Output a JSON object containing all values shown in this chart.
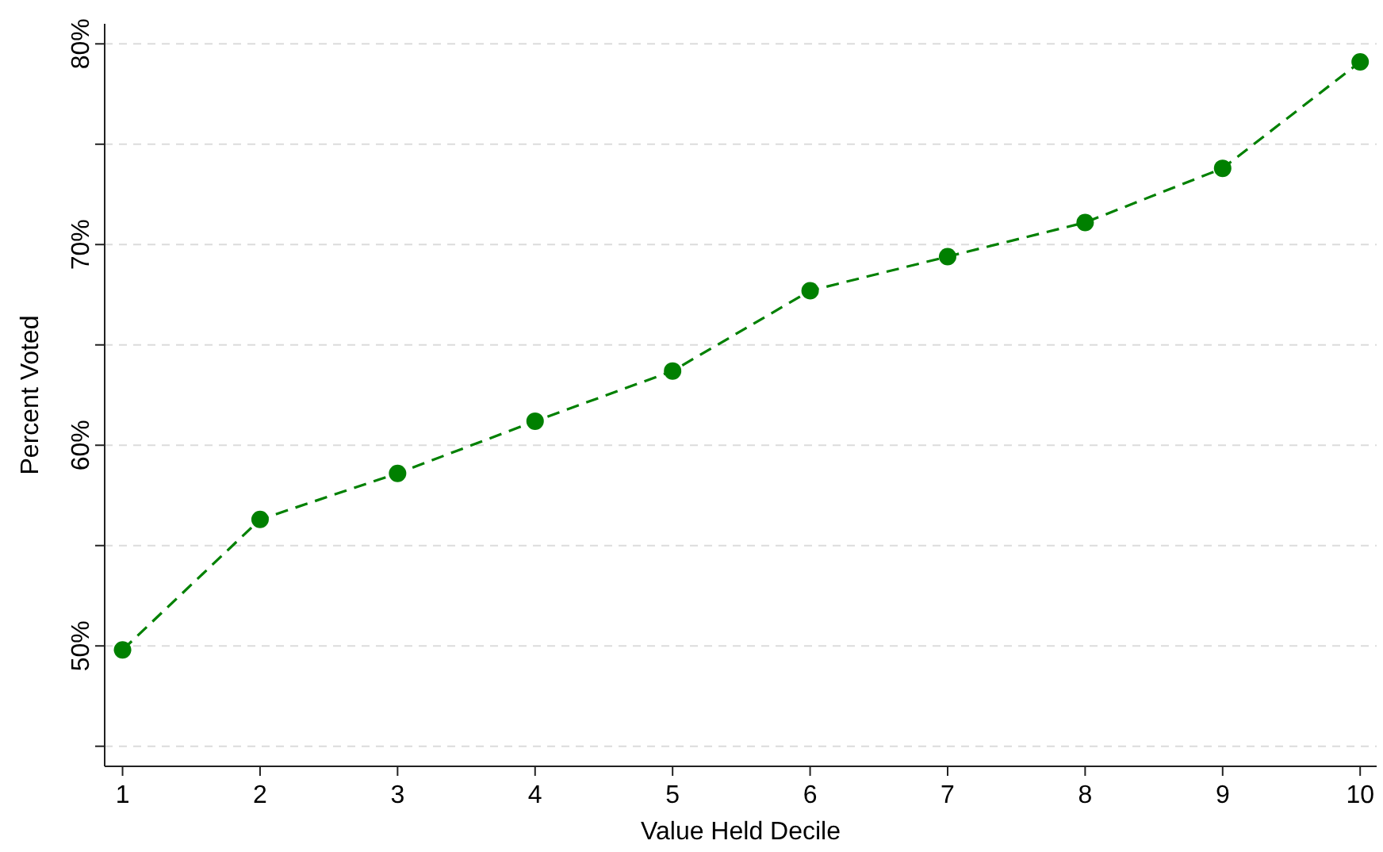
{
  "chart_data": {
    "type": "line",
    "xlabel": "Value Held Decile",
    "ylabel": "Percent Voted",
    "x": [
      1,
      2,
      3,
      4,
      5,
      6,
      7,
      8,
      9,
      10
    ],
    "series": [
      {
        "color": "#008000",
        "values": [
          49.8,
          56.3,
          58.6,
          61.2,
          63.7,
          67.7,
          69.4,
          71.1,
          73.8,
          79.1
        ]
      }
    ],
    "xlim": [
      0.87,
      10.12
    ],
    "xticks": [
      1,
      2,
      3,
      4,
      5,
      6,
      7,
      8,
      9,
      10
    ],
    "ylim": [
      44,
      81
    ],
    "yticks": [
      {
        "value": 45,
        "label": null
      },
      {
        "value": 50,
        "label": "50%"
      },
      {
        "value": 55,
        "label": null
      },
      {
        "value": 60,
        "label": "60%"
      },
      {
        "value": 65,
        "label": null
      },
      {
        "value": 70,
        "label": "70%"
      },
      {
        "value": 75,
        "label": null
      },
      {
        "value": 80,
        "label": "80%"
      }
    ],
    "grid": "y",
    "marker": "circle",
    "line_style": "dashed"
  }
}
